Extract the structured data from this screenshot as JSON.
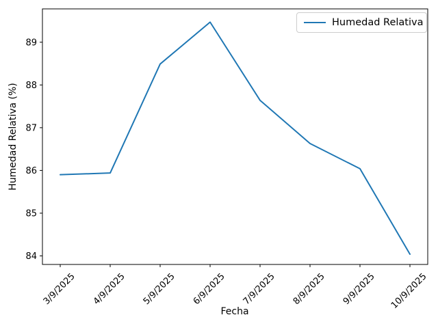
{
  "chart_data": {
    "type": "line",
    "xlabel": "Fecha",
    "ylabel": "Humedad Relativa (%)",
    "categories": [
      "3/9/2025",
      "4/9/2025",
      "5/9/2025",
      "6/9/2025",
      "7/9/2025",
      "8/9/2025",
      "9/9/2025",
      "10/9/2025"
    ],
    "series": [
      {
        "name": "Humedad Relativa",
        "color": "#1f77b4",
        "values": [
          85.9,
          85.94,
          88.49,
          89.47,
          87.64,
          86.63,
          86.04,
          84.04
        ]
      }
    ],
    "yticks": [
      84,
      85,
      86,
      87,
      88,
      89
    ],
    "ylim": [
      83.8,
      89.78
    ],
    "x_tick_rotation": 45,
    "grid": false,
    "legend": {
      "position": "upper right",
      "entries": [
        "Humedad Relativa"
      ]
    },
    "colors": {
      "line": "#1f77b4",
      "text": "#000000",
      "spine": "#000000",
      "legend_border": "#cccccc",
      "background": "#ffffff"
    }
  }
}
